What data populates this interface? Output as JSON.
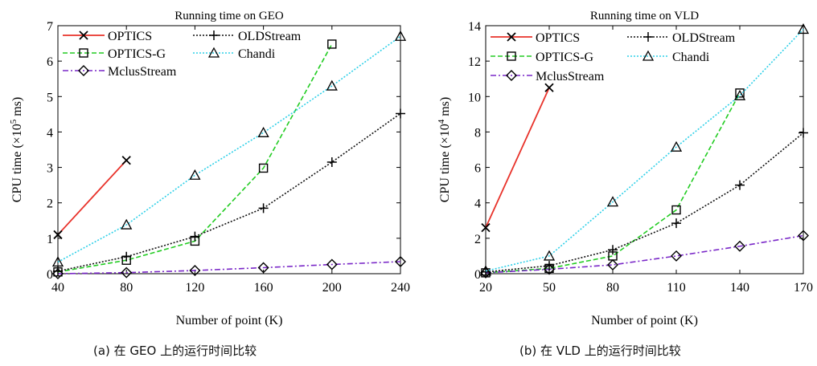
{
  "figure": {
    "caption_a": "(a)  在 GEO 上的运行时间比较",
    "caption_b": "(b)  在 VLD 上的运行时间比较"
  },
  "chart_data": [
    {
      "type": "line",
      "title": "Running time on GEO",
      "xlabel": "Number of point (K)",
      "ylabel": "CPU time (×10⁵ ms)",
      "ylabel_parts": [
        "CPU time (×10",
        "5",
        " ms)"
      ],
      "xlim": [
        40,
        240
      ],
      "ylim": [
        0,
        7
      ],
      "xticks": [
        40,
        80,
        120,
        160,
        200,
        240
      ],
      "yticks": [
        0,
        1,
        2,
        3,
        4,
        5,
        6,
        7
      ],
      "legend_position": "top-left",
      "series": [
        {
          "name": "OPTICS",
          "color": "#e8322a",
          "dash": "solid",
          "marker": "x",
          "x": [
            40,
            80
          ],
          "y": [
            1.1,
            3.2
          ]
        },
        {
          "name": "OPTICS-G",
          "color": "#22cc22",
          "dash": "dashed",
          "marker": "square",
          "x": [
            40,
            80,
            120,
            160,
            200
          ],
          "y": [
            0.05,
            0.38,
            0.92,
            2.98,
            6.48
          ]
        },
        {
          "name": "MclusStream",
          "color": "#7a28c8",
          "dash": "dashdot",
          "marker": "diamond",
          "x": [
            40,
            80,
            120,
            160,
            200,
            240
          ],
          "y": [
            0.0,
            0.03,
            0.09,
            0.17,
            0.26,
            0.34
          ]
        },
        {
          "name": "OLDStream",
          "color": "#111111",
          "dash": "dotted",
          "marker": "plus",
          "x": [
            40,
            80,
            120,
            160,
            200,
            240
          ],
          "y": [
            0.07,
            0.48,
            1.05,
            1.85,
            3.15,
            4.52
          ]
        },
        {
          "name": "Chandi",
          "color": "#2ed0e8",
          "dash": "dotted",
          "marker": "triangle",
          "x": [
            40,
            80,
            120,
            160,
            200,
            240
          ],
          "y": [
            0.33,
            1.38,
            2.78,
            3.98,
            5.3,
            6.7
          ]
        }
      ]
    },
    {
      "type": "line",
      "title": "Running time on VLD",
      "xlabel": "Number of point (K)",
      "ylabel": "CPU time (×10⁴ ms)",
      "ylabel_parts": [
        "CPU time (×10",
        "4",
        " ms)"
      ],
      "xlim": [
        20,
        170
      ],
      "ylim": [
        0,
        14
      ],
      "xticks": [
        20,
        50,
        80,
        110,
        140,
        170
      ],
      "yticks": [
        0,
        2,
        4,
        6,
        8,
        10,
        12,
        14
      ],
      "legend_position": "top-left",
      "series": [
        {
          "name": "OPTICS",
          "color": "#e8322a",
          "dash": "solid",
          "marker": "x",
          "x": [
            20,
            50
          ],
          "y": [
            2.6,
            10.5
          ]
        },
        {
          "name": "OPTICS-G",
          "color": "#22cc22",
          "dash": "dashed",
          "marker": "square",
          "x": [
            20,
            50,
            80,
            110,
            140
          ],
          "y": [
            0.05,
            0.3,
            1.0,
            3.6,
            10.2
          ]
        },
        {
          "name": "MclusStream",
          "color": "#7a28c8",
          "dash": "dashdot",
          "marker": "diamond",
          "x": [
            20,
            50,
            80,
            110,
            140,
            170
          ],
          "y": [
            0.05,
            0.25,
            0.5,
            1.0,
            1.55,
            2.15
          ]
        },
        {
          "name": "OLDStream",
          "color": "#111111",
          "dash": "dotted",
          "marker": "plus",
          "x": [
            20,
            50,
            80,
            110,
            140,
            170
          ],
          "y": [
            0.1,
            0.45,
            1.35,
            2.85,
            5.0,
            7.95
          ]
        },
        {
          "name": "Chandi",
          "color": "#2ed0e8",
          "dash": "dotted",
          "marker": "triangle",
          "x": [
            20,
            50,
            80,
            110,
            140,
            170
          ],
          "y": [
            0.15,
            1.0,
            4.05,
            7.15,
            10.05,
            13.8
          ]
        }
      ]
    }
  ]
}
